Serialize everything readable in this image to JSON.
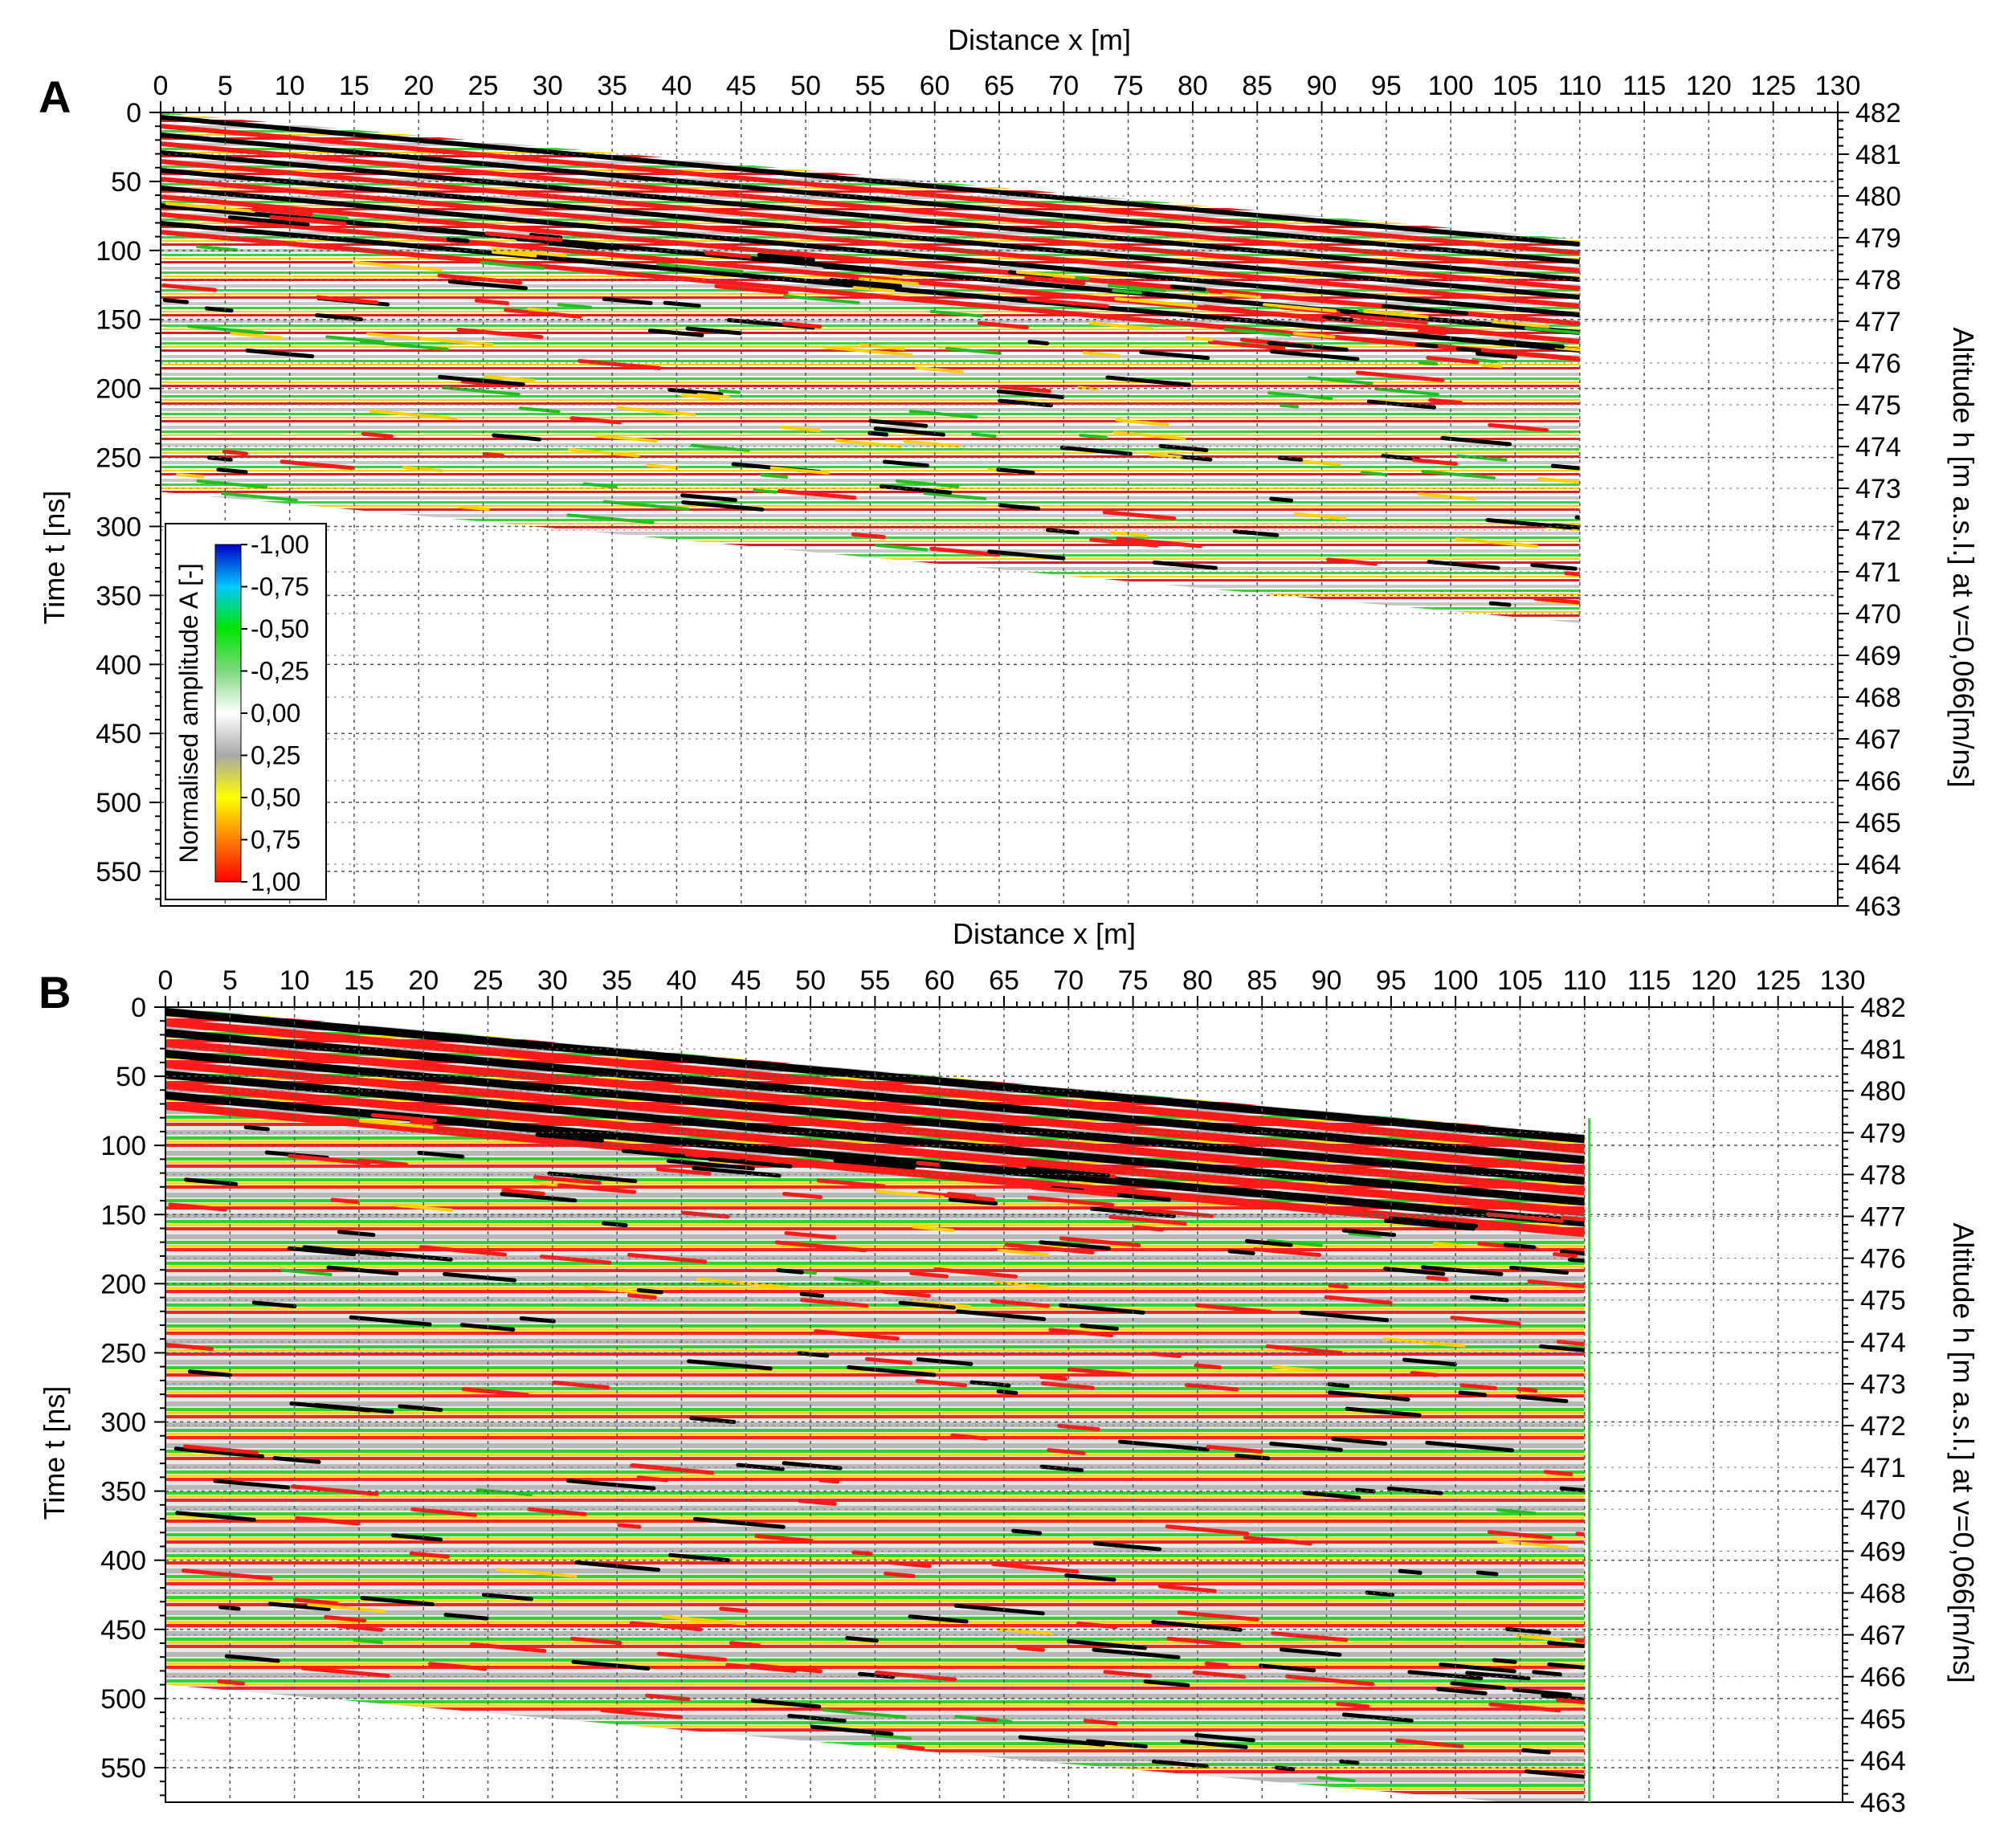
{
  "chart_data": [
    {
      "type": "heatmap",
      "panel_label": "A",
      "xlabel": "Distance x [m]",
      "ylabel": "Time t [ns]",
      "y2label": "Altitude h [m a.s.l.] at v=0,066[m/ns]",
      "xlim": [
        0,
        130
      ],
      "ylim": [
        0,
        575
      ],
      "y2lim": [
        482,
        463
      ],
      "x_ticks": [
        "0",
        "5",
        "10",
        "15",
        "20",
        "25",
        "30",
        "35",
        "40",
        "45",
        "50",
        "55",
        "60",
        "65",
        "70",
        "75",
        "80",
        "85",
        "90",
        "95",
        "100",
        "105",
        "110",
        "115",
        "120",
        "125",
        "130"
      ],
      "y_ticks": [
        "0",
        "50",
        "100",
        "150",
        "200",
        "250",
        "300",
        "350",
        "400",
        "450",
        "500",
        "550"
      ],
      "y2_ticks": [
        "482",
        "481",
        "480",
        "479",
        "478",
        "477",
        "476",
        "475",
        "474",
        "473",
        "472",
        "471",
        "470",
        "469",
        "468",
        "467",
        "466",
        "465",
        "464",
        "463"
      ],
      "grid": true,
      "data_extent": {
        "x": [
          0,
          110
        ],
        "top_time_ns": [
          0,
          92
        ],
        "bottom_time_ns": [
          275,
          370
        ]
      },
      "colorbar": {
        "label": "Normalised amplitude A [-]",
        "placement": "lower-left",
        "ticks": [
          "-1,00",
          "-0,75",
          "-0,50",
          "-0,25",
          "0,00",
          "0,25",
          "0,50",
          "0,75",
          "1,00"
        ],
        "colors": [
          "#0000c8",
          "#00c8ff",
          "#00e600",
          "#7fd87f",
          "#ffffff",
          "#a8a8a8",
          "#ffff00",
          "#ff8000",
          "#ff0000"
        ]
      }
    },
    {
      "type": "heatmap",
      "panel_label": "B",
      "xlabel": "Distance x [m]",
      "ylabel": "Time t [ns]",
      "y2label": "Altitude h [m a.s.l.] at v=0,066[m/ns]",
      "xlim": [
        0,
        130
      ],
      "ylim": [
        0,
        575
      ],
      "y2lim": [
        482,
        463
      ],
      "x_ticks": [
        "0",
        "5",
        "10",
        "15",
        "20",
        "25",
        "30",
        "35",
        "40",
        "45",
        "50",
        "55",
        "60",
        "65",
        "70",
        "75",
        "80",
        "85",
        "90",
        "95",
        "100",
        "105",
        "110",
        "115",
        "120",
        "125",
        "130"
      ],
      "y_ticks": [
        "0",
        "50",
        "100",
        "150",
        "200",
        "250",
        "300",
        "350",
        "400",
        "450",
        "500",
        "550"
      ],
      "y2_ticks": [
        "482",
        "481",
        "480",
        "479",
        "478",
        "477",
        "476",
        "475",
        "474",
        "473",
        "472",
        "471",
        "470",
        "469",
        "468",
        "467",
        "466",
        "465",
        "464",
        "463"
      ],
      "grid": true,
      "data_extent": {
        "x": [
          0,
          110
        ],
        "top_time_ns": [
          0,
          92
        ],
        "bottom_time_ns": [
          490,
          580
        ]
      }
    }
  ]
}
